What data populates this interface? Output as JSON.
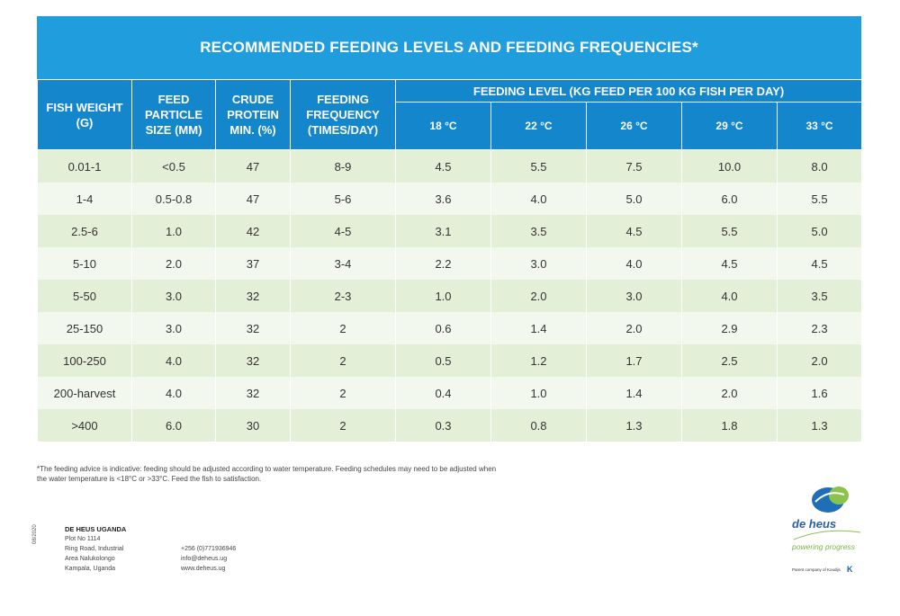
{
  "title": "RECOMMENDED FEEDING LEVELS AND FEEDING FREQUENCIES*",
  "headers": {
    "fish_weight": "FISH WEIGHT (G)",
    "feed_particle": "FEED PARTICLE SIZE (MM)",
    "crude_protein": "CRUDE PROTEIN MIN. (%)",
    "feeding_frequency": "FEEDING FREQUENCY (TIMES/DAY)",
    "feeding_level_group": "FEEDING LEVEL (KG FEED PER 100 KG FISH PER DAY)",
    "temps": [
      "18 °C",
      "22 °C",
      "26 °C",
      "29 °C",
      "33 °C"
    ]
  },
  "rows": [
    [
      "0.01-1",
      "<0.5",
      "47",
      "8-9",
      "4.5",
      "5.5",
      "7.5",
      "10.0",
      "8.0"
    ],
    [
      "1-4",
      "0.5-0.8",
      "47",
      "5-6",
      "3.6",
      "4.0",
      "5.0",
      "6.0",
      "5.5"
    ],
    [
      "2.5-6",
      "1.0",
      "42",
      "4-5",
      "3.1",
      "3.5",
      "4.5",
      "5.5",
      "5.0"
    ],
    [
      "5-10",
      "2.0",
      "37",
      "3-4",
      "2.2",
      "3.0",
      "4.0",
      "4.5",
      "4.5"
    ],
    [
      "5-50",
      "3.0",
      "32",
      "2-3",
      "1.0",
      "2.0",
      "3.0",
      "4.0",
      "3.5"
    ],
    [
      "25-150",
      "3.0",
      "32",
      "2",
      "0.6",
      "1.4",
      "2.0",
      "2.9",
      "2.3"
    ],
    [
      "100-250",
      "4.0",
      "32",
      "2",
      "0.5",
      "1.2",
      "1.7",
      "2.5",
      "2.0"
    ],
    [
      "200-harvest",
      "4.0",
      "32",
      "2",
      "0.4",
      "1.0",
      "1.4",
      "2.0",
      "1.6"
    ],
    [
      ">400",
      "6.0",
      "30",
      "2",
      "0.3",
      "0.8",
      "1.3",
      "1.8",
      "1.3"
    ]
  ],
  "footnote": "*The feeding advice is indicative: feeding should be adjusted according to water temperature. Feeding schedules may need to be adjusted when the water temperature is <18°C or >33°C. Feed the fish to satisfaction.",
  "company": {
    "name": "DE HEUS UGANDA",
    "lines": [
      "Plot No 1114",
      "Ring Road, Industrial",
      "Area Nalukolongo",
      "Kampala, Uganda"
    ],
    "contact": [
      "+256 (0)771936946",
      "info@deheus.ug",
      "www.deheus.ug"
    ],
    "doc_code": "08/2020"
  },
  "brand": {
    "name": "de heus",
    "tagline": "powering progress",
    "parent": "Parent company of Koudijs",
    "badge": "K"
  },
  "colors": {
    "title_band": "#1f9ddd",
    "header": "#1386cc",
    "row_odd": "#e4efd8",
    "row_even": "#f3f8ee"
  }
}
